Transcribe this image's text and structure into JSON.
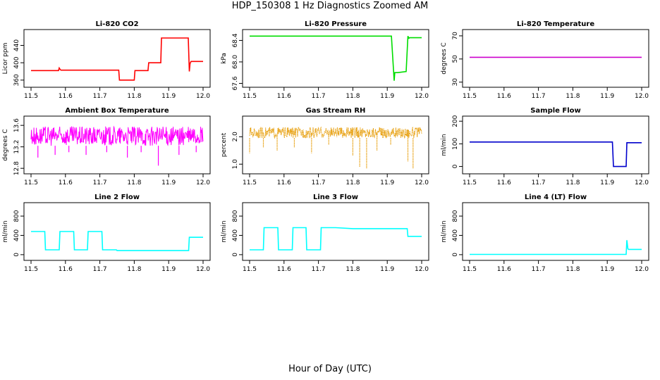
{
  "page": {
    "title": "HDP_150308  1 Hz Diagnostics Zoomed AM",
    "xlabel": "Hour of Day (UTC)"
  },
  "chart_data": [
    {
      "id": "co2",
      "type": "line",
      "title": "Li-820 CO2",
      "ylabel": "Licor ppm",
      "color": "#ff0000",
      "xlim": [
        11.5,
        12.0
      ],
      "xticks": [
        11.5,
        11.6,
        11.7,
        11.8,
        11.9,
        12.0
      ],
      "ylim": [
        350,
        470
      ],
      "yticks": [
        360,
        400,
        440
      ],
      "x": [
        11.5,
        11.58,
        11.582,
        11.585,
        11.587,
        11.755,
        11.757,
        11.8,
        11.802,
        11.84,
        11.842,
        11.877,
        11.879,
        11.957,
        11.96,
        11.962,
        11.965,
        12.0
      ],
      "y": [
        382,
        382,
        388,
        384,
        383,
        383,
        360,
        360,
        382,
        382,
        400,
        400,
        457,
        457,
        380,
        398,
        403,
        403
      ]
    },
    {
      "id": "pressure",
      "type": "line",
      "title": "Li-820 Pressure",
      "ylabel": "kPa",
      "color": "#00dd00",
      "xlim": [
        11.5,
        12.0
      ],
      "xticks": [
        11.5,
        11.6,
        11.7,
        11.8,
        11.9,
        12.0
      ],
      "ylim": [
        67.58,
        68.55
      ],
      "yticks": [
        67.6,
        68.0,
        68.4
      ],
      "x": [
        11.5,
        11.9,
        11.912,
        11.92,
        11.922,
        11.93,
        11.955,
        11.96,
        11.963,
        11.965,
        12.0
      ],
      "y": [
        68.48,
        68.48,
        68.48,
        67.65,
        67.8,
        67.8,
        67.82,
        68.48,
        68.44,
        68.45,
        68.45
      ]
    },
    {
      "id": "temp",
      "type": "line",
      "title": "Li-820 Temperature",
      "ylabel": "degrees C",
      "color": "#cc00cc",
      "xlim": [
        11.5,
        12.0
      ],
      "xticks": [
        11.5,
        11.6,
        11.7,
        11.8,
        11.9,
        12.0
      ],
      "ylim": [
        28,
        73
      ],
      "yticks": [
        30,
        50,
        70
      ],
      "x": [
        11.5,
        12.0
      ],
      "y": [
        51.5,
        51.5
      ]
    },
    {
      "id": "boxtemp",
      "type": "line",
      "title": "Ambient Box Temperature",
      "ylabel": "degrees C",
      "color": "#ff00ff",
      "xlim": [
        11.5,
        12.0
      ],
      "xticks": [
        11.5,
        11.6,
        11.7,
        11.8,
        11.9,
        12.0
      ],
      "ylim": [
        12.75,
        13.72
      ],
      "yticks": [
        12.8,
        13.2,
        13.6
      ],
      "band": [
        13.22,
        13.58
      ],
      "spikes": [
        [
          11.52,
          13.0
        ],
        [
          11.57,
          13.05
        ],
        [
          11.61,
          13.1
        ],
        [
          11.66,
          13.05
        ],
        [
          11.72,
          13.1
        ],
        [
          11.78,
          13.0
        ],
        [
          11.82,
          13.1
        ],
        [
          11.87,
          12.85
        ],
        [
          11.93,
          13.05
        ],
        [
          11.98,
          13.1
        ]
      ]
    },
    {
      "id": "rh",
      "type": "line",
      "title": "Gas Stream RH",
      "ylabel": "percent",
      "color": "#e69a00",
      "xlim": [
        11.5,
        12.0
      ],
      "xticks": [
        11.5,
        11.6,
        11.7,
        11.8,
        11.9,
        12.0
      ],
      "ylim": [
        0.75,
        2.65
      ],
      "yticks": [
        1.0,
        2.0
      ],
      "band": [
        1.95,
        2.35
      ],
      "spikes": [
        [
          11.5,
          1.4
        ],
        [
          11.54,
          1.6
        ],
        [
          11.58,
          1.5
        ],
        [
          11.63,
          1.6
        ],
        [
          11.68,
          1.4
        ],
        [
          11.73,
          1.7
        ],
        [
          11.8,
          1.3
        ],
        [
          11.82,
          0.9
        ],
        [
          11.84,
          0.85
        ],
        [
          11.87,
          1.5
        ],
        [
          11.91,
          1.7
        ],
        [
          11.96,
          1.1
        ],
        [
          11.975,
          0.85
        ]
      ]
    },
    {
      "id": "sample",
      "type": "line",
      "title": "Sample Flow",
      "ylabel": "ml/min",
      "color": "#0000cc",
      "xlim": [
        11.5,
        12.0
      ],
      "xticks": [
        11.5,
        11.6,
        11.7,
        11.8,
        11.9,
        12.0
      ],
      "ylim": [
        -20,
        210
      ],
      "yticks": [
        0,
        100,
        200
      ],
      "x": [
        11.5,
        11.915,
        11.918,
        11.955,
        11.957,
        12.0
      ],
      "y": [
        108,
        108,
        0,
        0,
        105,
        105
      ]
    },
    {
      "id": "line2",
      "type": "line",
      "title": "Line 2 Flow",
      "ylabel": "ml/min",
      "color": "#00ffff",
      "xlim": [
        11.5,
        12.0
      ],
      "xticks": [
        11.5,
        11.6,
        11.7,
        11.8,
        11.9,
        12.0
      ],
      "ylim": [
        -60,
        1020
      ],
      "yticks": [
        0,
        400,
        800
      ],
      "x": [
        11.5,
        11.54,
        11.542,
        11.582,
        11.584,
        11.624,
        11.626,
        11.664,
        11.666,
        11.706,
        11.708,
        11.748,
        11.75,
        11.958,
        11.96,
        12.0
      ],
      "y": [
        480,
        480,
        100,
        100,
        480,
        480,
        100,
        100,
        480,
        480,
        100,
        100,
        85,
        85,
        360,
        360
      ]
    },
    {
      "id": "line3",
      "type": "line",
      "title": "Line 3 Flow",
      "ylabel": "ml/min",
      "color": "#00ffff",
      "xlim": [
        11.5,
        12.0
      ],
      "xticks": [
        11.5,
        11.6,
        11.7,
        11.8,
        11.9,
        12.0
      ],
      "ylim": [
        -60,
        1020
      ],
      "yticks": [
        0,
        400,
        800
      ],
      "x": [
        11.5,
        11.54,
        11.542,
        11.582,
        11.584,
        11.624,
        11.626,
        11.664,
        11.666,
        11.706,
        11.708,
        11.75,
        11.8,
        11.958,
        11.96,
        12.0
      ],
      "y": [
        100,
        100,
        560,
        560,
        100,
        100,
        560,
        560,
        100,
        100,
        560,
        560,
        540,
        540,
        380,
        380
      ]
    },
    {
      "id": "line4",
      "type": "line",
      "title": "Line 4 (LT) Flow",
      "ylabel": "ml/min",
      "color": "#00ffff",
      "xlim": [
        11.5,
        12.0
      ],
      "xticks": [
        11.5,
        11.6,
        11.7,
        11.8,
        11.9,
        12.0
      ],
      "ylim": [
        -60,
        1020
      ],
      "yticks": [
        0,
        400,
        800
      ],
      "x": [
        11.5,
        11.955,
        11.957,
        11.96,
        11.962,
        12.0
      ],
      "y": [
        5,
        5,
        300,
        120,
        110,
        110
      ]
    }
  ]
}
